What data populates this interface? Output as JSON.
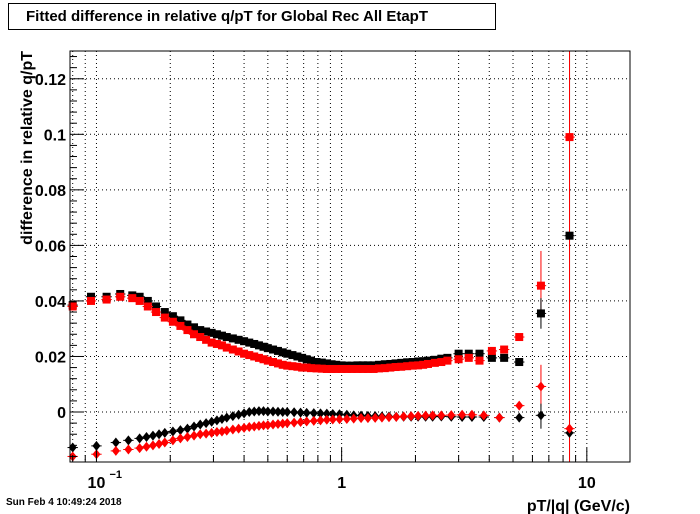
{
  "chart_data": {
    "type": "scatter",
    "title": "Fitted difference in relative q/pT for Global Rec All EtapT",
    "xlabel": "pT/|q| (GeV/c)",
    "ylabel": "difference in relative q/pT",
    "x_scale": "log",
    "xlim": [
      0.078,
      15
    ],
    "ylim": [
      -0.018,
      0.13
    ],
    "grid": true,
    "x_tick_labels": [
      "10",
      "1",
      "10"
    ],
    "x_tick_label_first_exponent": "−1",
    "y_tick_labels": [
      "0",
      "0.02",
      "0.04",
      "0.06",
      "0.08",
      "0.1",
      "0.12"
    ],
    "series": [
      {
        "marker": "square",
        "color": "#000000",
        "x": [
          0.08,
          0.095,
          0.11,
          0.125,
          0.14,
          0.15,
          0.162,
          0.175,
          0.19,
          0.205,
          0.22,
          0.235,
          0.25,
          0.265,
          0.28,
          0.295,
          0.31,
          0.325,
          0.34,
          0.36,
          0.38,
          0.4,
          0.42,
          0.44,
          0.46,
          0.48,
          0.5,
          0.525,
          0.55,
          0.575,
          0.6,
          0.63,
          0.66,
          0.69,
          0.72,
          0.75,
          0.79,
          0.83,
          0.87,
          0.91,
          0.95,
          1.0,
          1.05,
          1.1,
          1.16,
          1.22,
          1.28,
          1.35,
          1.42,
          1.5,
          1.58,
          1.66,
          1.75,
          1.85,
          1.95,
          2.05,
          2.15,
          2.25,
          2.4,
          2.55,
          2.7,
          3.0,
          3.3,
          3.65,
          4.1,
          4.6,
          5.3,
          6.5,
          8.5
        ],
        "y": [
          0.0385,
          0.0415,
          0.0415,
          0.0425,
          0.042,
          0.0415,
          0.04,
          0.038,
          0.036,
          0.0345,
          0.033,
          0.0315,
          0.0305,
          0.0295,
          0.029,
          0.0285,
          0.028,
          0.0275,
          0.027,
          0.0265,
          0.026,
          0.0255,
          0.025,
          0.0245,
          0.024,
          0.0235,
          0.023,
          0.0225,
          0.022,
          0.0215,
          0.021,
          0.0205,
          0.02,
          0.0195,
          0.019,
          0.0185,
          0.018,
          0.0178,
          0.0175,
          0.0172,
          0.017,
          0.0168,
          0.0167,
          0.0167,
          0.0168,
          0.0168,
          0.0168,
          0.0168,
          0.017,
          0.0172,
          0.0173,
          0.0175,
          0.0177,
          0.0179,
          0.018,
          0.0182,
          0.0183,
          0.0185,
          0.0188,
          0.0192,
          0.0195,
          0.021,
          0.021,
          0.021,
          0.0195,
          0.0195,
          0.018,
          0.0355,
          0.0635
        ]
      },
      {
        "marker": "square",
        "color": "#ff0000",
        "x": [
          0.08,
          0.095,
          0.11,
          0.125,
          0.14,
          0.15,
          0.162,
          0.175,
          0.19,
          0.205,
          0.22,
          0.235,
          0.25,
          0.265,
          0.28,
          0.295,
          0.31,
          0.325,
          0.34,
          0.36,
          0.38,
          0.4,
          0.42,
          0.44,
          0.46,
          0.48,
          0.5,
          0.525,
          0.55,
          0.575,
          0.6,
          0.63,
          0.66,
          0.69,
          0.72,
          0.75,
          0.79,
          0.83,
          0.87,
          0.91,
          0.95,
          1.0,
          1.05,
          1.1,
          1.16,
          1.22,
          1.28,
          1.35,
          1.42,
          1.5,
          1.58,
          1.66,
          1.75,
          1.85,
          1.95,
          2.05,
          2.15,
          2.25,
          2.4,
          2.55,
          2.7,
          3.0,
          3.3,
          3.65,
          4.1,
          4.6,
          5.3,
          6.5,
          8.5
        ],
        "y": [
          0.038,
          0.04,
          0.0405,
          0.0415,
          0.041,
          0.04,
          0.038,
          0.036,
          0.034,
          0.0325,
          0.031,
          0.0295,
          0.028,
          0.027,
          0.026,
          0.025,
          0.0245,
          0.024,
          0.0232,
          0.0225,
          0.0218,
          0.021,
          0.0205,
          0.02,
          0.0195,
          0.019,
          0.0185,
          0.018,
          0.0175,
          0.017,
          0.0167,
          0.0165,
          0.0163,
          0.016,
          0.016,
          0.0158,
          0.0157,
          0.0156,
          0.0155,
          0.0155,
          0.0155,
          0.0155,
          0.0155,
          0.0155,
          0.0155,
          0.0155,
          0.0155,
          0.0155,
          0.0157,
          0.0158,
          0.016,
          0.0162,
          0.0163,
          0.0165,
          0.0167,
          0.0168,
          0.017,
          0.0173,
          0.0177,
          0.018,
          0.0185,
          0.019,
          0.0195,
          0.0185,
          0.022,
          0.0225,
          0.027,
          0.0455,
          0.099
        ]
      },
      {
        "marker": "diamond",
        "color": "#000000",
        "x": [
          0.08,
          0.1,
          0.12,
          0.135,
          0.15,
          0.16,
          0.17,
          0.18,
          0.19,
          0.205,
          0.22,
          0.235,
          0.25,
          0.265,
          0.28,
          0.295,
          0.31,
          0.325,
          0.34,
          0.36,
          0.38,
          0.4,
          0.42,
          0.44,
          0.46,
          0.48,
          0.5,
          0.525,
          0.55,
          0.575,
          0.6,
          0.64,
          0.68,
          0.72,
          0.77,
          0.82,
          0.87,
          0.92,
          0.98,
          1.05,
          1.12,
          1.2,
          1.28,
          1.37,
          1.46,
          1.56,
          1.67,
          1.79,
          1.92,
          2.05,
          2.2,
          2.35,
          2.55,
          2.8,
          3.1,
          3.4,
          3.8,
          4.4,
          5.3,
          6.5,
          8.5
        ],
        "y": [
          -0.0128,
          -0.0122,
          -0.011,
          -0.0102,
          -0.0095,
          -0.009,
          -0.0085,
          -0.008,
          -0.0075,
          -0.007,
          -0.0065,
          -0.006,
          -0.0052,
          -0.0045,
          -0.004,
          -0.0035,
          -0.003,
          -0.0025,
          -0.002,
          -0.0015,
          -0.001,
          -0.0005,
          0.0,
          0.0002,
          0.0003,
          0.0003,
          0.0002,
          0.0002,
          0.0001,
          0.0,
          0.0,
          -0.0001,
          -0.0002,
          -0.0003,
          -0.0004,
          -0.0005,
          -0.0006,
          -0.0007,
          -0.0008,
          -0.001,
          -0.0012,
          -0.0013,
          -0.0014,
          -0.0015,
          -0.0016,
          -0.0016,
          -0.0017,
          -0.0017,
          -0.0017,
          -0.0017,
          -0.0017,
          -0.0017,
          -0.0016,
          -0.0017,
          -0.0018,
          -0.0018,
          -0.0018,
          -0.002,
          -0.002,
          -0.0012,
          -0.0075
        ]
      },
      {
        "marker": "diamond",
        "color": "#ff0000",
        "x": [
          0.08,
          0.1,
          0.12,
          0.135,
          0.15,
          0.16,
          0.17,
          0.18,
          0.19,
          0.205,
          0.22,
          0.235,
          0.25,
          0.265,
          0.28,
          0.295,
          0.31,
          0.325,
          0.34,
          0.36,
          0.38,
          0.4,
          0.42,
          0.44,
          0.46,
          0.48,
          0.5,
          0.525,
          0.55,
          0.575,
          0.6,
          0.64,
          0.68,
          0.72,
          0.77,
          0.82,
          0.87,
          0.92,
          0.98,
          1.05,
          1.12,
          1.2,
          1.28,
          1.37,
          1.46,
          1.56,
          1.67,
          1.79,
          1.92,
          2.05,
          2.2,
          2.35,
          2.55,
          2.8,
          3.1,
          3.4,
          3.8,
          4.4,
          5.3,
          6.5,
          8.5
        ],
        "y": [
          -0.016,
          -0.0152,
          -0.014,
          -0.0135,
          -0.013,
          -0.0125,
          -0.012,
          -0.0115,
          -0.011,
          -0.0102,
          -0.0095,
          -0.009,
          -0.0085,
          -0.008,
          -0.0078,
          -0.0075,
          -0.0072,
          -0.007,
          -0.0067,
          -0.0063,
          -0.006,
          -0.0057,
          -0.0054,
          -0.0052,
          -0.005,
          -0.0048,
          -0.0047,
          -0.0045,
          -0.0043,
          -0.0042,
          -0.004,
          -0.0038,
          -0.0036,
          -0.0034,
          -0.0032,
          -0.003,
          -0.0028,
          -0.0027,
          -0.0026,
          -0.0025,
          -0.0024,
          -0.0022,
          -0.0022,
          -0.0021,
          -0.002,
          -0.0019,
          -0.0018,
          -0.0016,
          -0.0015,
          -0.0014,
          -0.0013,
          -0.0012,
          -0.0012,
          -0.0011,
          -0.001,
          -0.001,
          -0.0012,
          -0.002,
          0.0023,
          0.0092,
          -0.006
        ]
      }
    ],
    "error_bars": [
      {
        "series": 0,
        "index": 68,
        "y_low": -0.02,
        "y_high": 0.13
      },
      {
        "series": 1,
        "index": 68,
        "y_low": -0.02,
        "y_high": 0.13
      },
      {
        "series": 1,
        "index": 67,
        "y_low": 0.036,
        "y_high": 0.058
      },
      {
        "series": 0,
        "index": 67,
        "y_low": 0.03,
        "y_high": 0.041
      },
      {
        "series": 3,
        "index": 59,
        "y_low": 0.002,
        "y_high": 0.017
      },
      {
        "series": 2,
        "index": 59,
        "y_low": -0.006,
        "y_high": 0.003
      }
    ]
  },
  "footer": {
    "timestamp": "Sun Feb  4 10:49:24 2018"
  }
}
